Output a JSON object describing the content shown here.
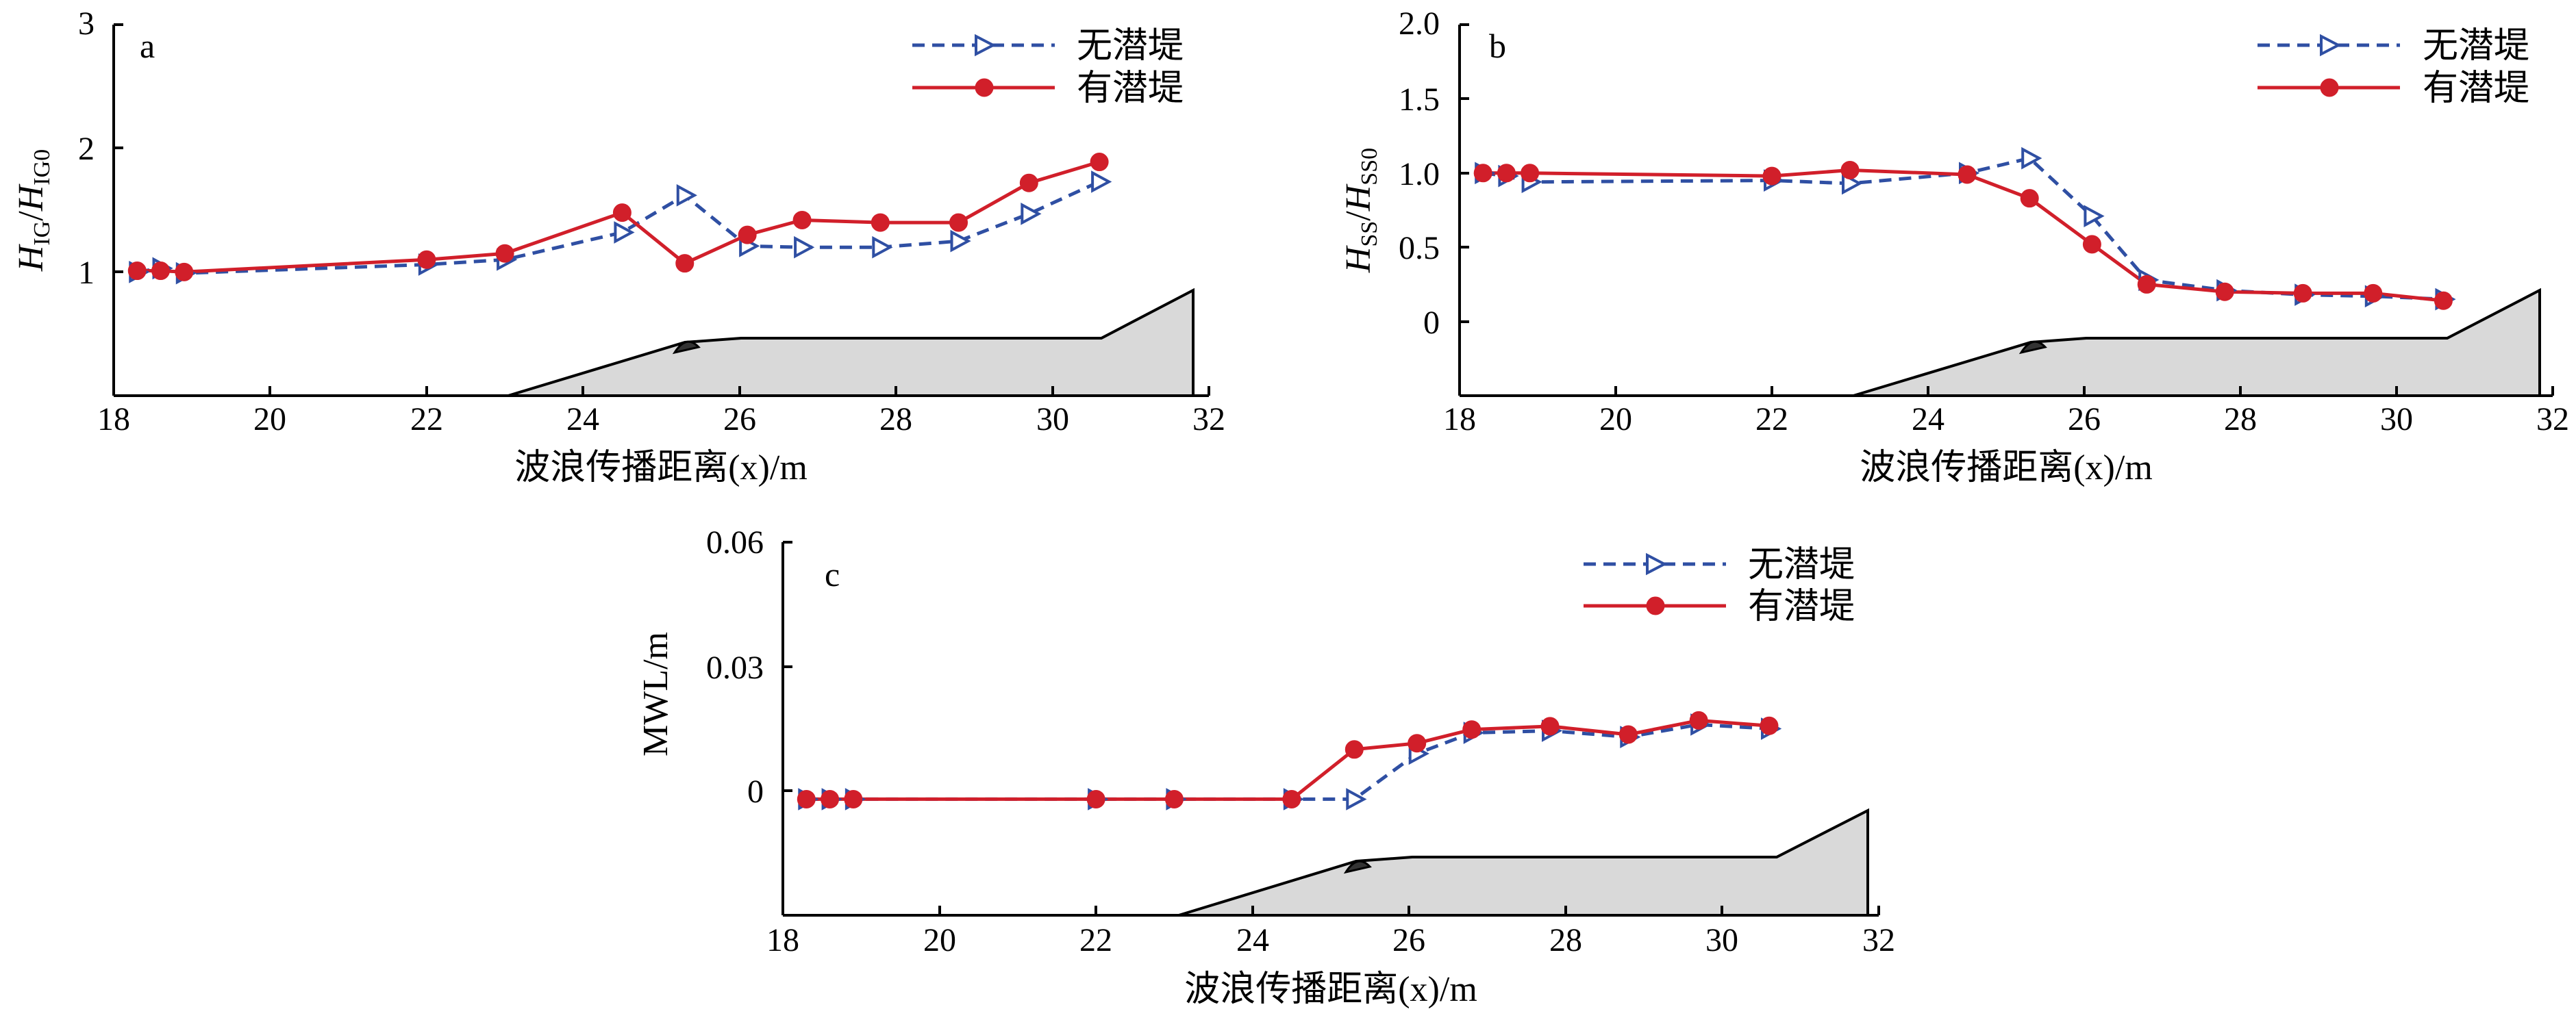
{
  "legend": {
    "no_breakwater": "无潜堤",
    "with_breakwater": "有潜堤"
  },
  "colors": {
    "no_breakwater": "#2f4fa3",
    "with_breakwater": "#d11f2a",
    "terrain_fill": "#d9d9d9"
  },
  "chart_data": [
    {
      "type": "line",
      "panel": "a",
      "xlabel": "波浪传播距离(x)/m",
      "ylabel": "H_IG/H_IG0",
      "xlim": [
        18,
        32
      ],
      "ylim": [
        0,
        3
      ],
      "x_ticks": [
        "18",
        "20",
        "22",
        "24",
        "26",
        "28",
        "30",
        "32"
      ],
      "y_ticks": [
        "1",
        "2",
        "3"
      ],
      "legend_position": "top-right",
      "grid": false,
      "series": [
        {
          "name": "无潜堤",
          "x": [
            18.3,
            18.6,
            18.9,
            22.0,
            23.0,
            24.5,
            25.3,
            26.1,
            26.8,
            27.8,
            28.8,
            29.7,
            30.6
          ],
          "y": [
            1.0,
            1.03,
            0.99,
            1.06,
            1.1,
            1.32,
            1.62,
            1.21,
            1.2,
            1.2,
            1.25,
            1.47,
            1.73
          ]
        },
        {
          "name": "有潜堤",
          "x": [
            18.3,
            18.6,
            18.9,
            22.0,
            23.0,
            24.5,
            25.3,
            26.1,
            26.8,
            27.8,
            28.8,
            29.7,
            30.6
          ],
          "y": [
            1.01,
            1.01,
            1.0,
            1.1,
            1.15,
            1.48,
            1.07,
            1.3,
            1.42,
            1.4,
            1.4,
            1.72,
            1.89
          ]
        }
      ]
    },
    {
      "type": "line",
      "panel": "b",
      "xlabel": "波浪传播距离(x)/m",
      "ylabel": "H_SS/H_SS0",
      "xlim": [
        18,
        32
      ],
      "ylim": [
        -0.5,
        2.0
      ],
      "x_ticks": [
        "18",
        "20",
        "22",
        "24",
        "26",
        "28",
        "30",
        "32"
      ],
      "y_ticks": [
        "0",
        "0.5",
        "1.0",
        "1.5",
        "2.0"
      ],
      "legend_position": "top-right",
      "grid": false,
      "series": [
        {
          "name": "无潜堤",
          "x": [
            18.3,
            18.6,
            18.9,
            22.0,
            23.0,
            24.5,
            25.3,
            26.1,
            26.8,
            27.8,
            28.8,
            29.7,
            30.6
          ],
          "y": [
            1.0,
            0.98,
            0.94,
            0.95,
            0.93,
            1.0,
            1.1,
            0.71,
            0.28,
            0.21,
            0.18,
            0.17,
            0.15
          ]
        },
        {
          "name": "有潜堤",
          "x": [
            18.3,
            18.6,
            18.9,
            22.0,
            23.0,
            24.5,
            25.3,
            26.1,
            26.8,
            27.8,
            28.8,
            29.7,
            30.6
          ],
          "y": [
            1.0,
            1.0,
            1.0,
            0.98,
            1.02,
            0.99,
            0.83,
            0.52,
            0.25,
            0.2,
            0.19,
            0.19,
            0.14
          ]
        }
      ]
    },
    {
      "type": "line",
      "panel": "c",
      "xlabel": "波浪传播距离(x)/m",
      "ylabel": "MWL/m",
      "xlim": [
        18,
        32
      ],
      "ylim": [
        -0.03,
        0.06
      ],
      "x_ticks": [
        "18",
        "20",
        "22",
        "24",
        "26",
        "28",
        "30",
        "32"
      ],
      "y_ticks": [
        "0",
        "0.03",
        "0.06"
      ],
      "legend_position": "top-right",
      "grid": false,
      "series": [
        {
          "name": "无潜堤",
          "x": [
            18.3,
            18.6,
            18.9,
            22.0,
            23.0,
            24.5,
            25.3,
            26.1,
            26.8,
            27.8,
            28.8,
            29.7,
            30.6
          ],
          "y": [
            -0.002,
            -0.002,
            -0.002,
            -0.002,
            -0.002,
            -0.002,
            -0.002,
            0.009,
            0.014,
            0.0145,
            0.013,
            0.016,
            0.015
          ]
        },
        {
          "name": "有潜堤",
          "x": [
            18.3,
            18.6,
            18.9,
            22.0,
            23.0,
            24.5,
            25.3,
            26.1,
            26.8,
            27.8,
            28.8,
            29.7,
            30.6
          ],
          "y": [
            -0.002,
            -0.002,
            -0.002,
            -0.002,
            -0.002,
            -0.002,
            0.01,
            0.0115,
            0.0148,
            0.0156,
            0.0136,
            0.017,
            0.0157
          ]
        }
      ]
    }
  ]
}
